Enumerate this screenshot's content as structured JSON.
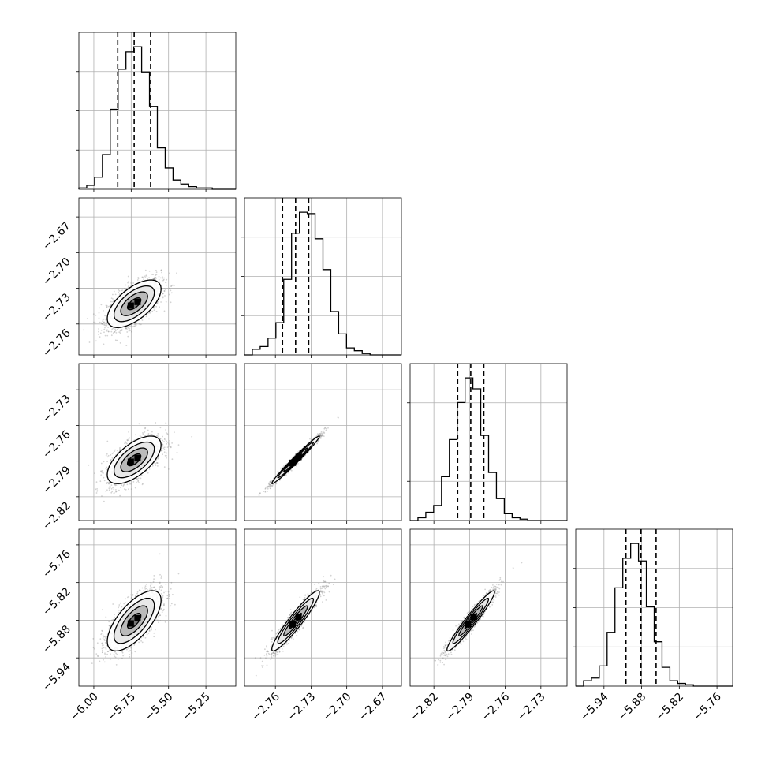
{
  "chart_data": {
    "type": "corner",
    "grid": true,
    "colors": {
      "contour": "#000000",
      "quantile_line": "#000000",
      "grid": "#b0b0b0",
      "points": "#808080"
    },
    "parameters": [
      {
        "index": 0,
        "range": [
          -6.1,
          -5.05
        ],
        "ticks": [
          -6.0,
          -5.75,
          -5.5,
          -5.25
        ],
        "tick_labels": [
          "−6.00",
          "−5.75",
          "−5.50",
          "−5.25"
        ],
        "mean": -5.73,
        "sd": 0.09,
        "quantiles": [
          -5.84,
          -5.73,
          -5.62
        ]
      },
      {
        "index": 1,
        "range": [
          -2.786,
          -2.654
        ],
        "ticks": [
          -2.76,
          -2.73,
          -2.7,
          -2.67
        ],
        "tick_labels": [
          "−2.76",
          "−2.73",
          "−2.70",
          "−2.67"
        ],
        "mean": -2.743,
        "sd": 0.01,
        "quantiles": [
          -2.754,
          -2.743,
          -2.732
        ]
      },
      {
        "index": 2,
        "range": [
          -2.84,
          -2.708
        ],
        "ticks": [
          -2.82,
          -2.79,
          -2.76,
          -2.73
        ],
        "tick_labels": [
          "−2.82",
          "−2.79",
          "−2.76",
          "−2.73"
        ],
        "mean": -2.789,
        "sd": 0.01,
        "quantiles": [
          -2.8,
          -2.789,
          -2.778
        ]
      },
      {
        "index": 3,
        "range": [
          -5.985,
          -5.735
        ],
        "ticks": [
          -5.94,
          -5.88,
          -5.82,
          -5.76
        ],
        "tick_labels": [
          "−5.94",
          "−5.88",
          "−5.82",
          "−5.76"
        ],
        "mean": -5.881,
        "sd": 0.024,
        "quantiles": [
          -5.905,
          -5.881,
          -5.857
        ]
      }
    ],
    "histograms": [
      {
        "param": 0,
        "counts": [
          1,
          3,
          9,
          26,
          60,
          90,
          103,
          107,
          88,
          62,
          31,
          16,
          7,
          4,
          2,
          1,
          1,
          0,
          0,
          0
        ]
      },
      {
        "param": 1,
        "counts": [
          0,
          4,
          6,
          12,
          23,
          54,
          87,
          102,
          101,
          83,
          61,
          31,
          15,
          5,
          3,
          1,
          0,
          0,
          0,
          0
        ]
      },
      {
        "param": 2,
        "counts": [
          0,
          2,
          6,
          11,
          32,
          59,
          86,
          104,
          96,
          62,
          35,
          16,
          5,
          2,
          1,
          0,
          0,
          0,
          0,
          0
        ]
      },
      {
        "param": 3,
        "counts": [
          0,
          4,
          6,
          15,
          40,
          73,
          95,
          106,
          93,
          59,
          33,
          14,
          4,
          2,
          1,
          0,
          0,
          0,
          0,
          0
        ]
      }
    ],
    "pairs": [
      {
        "x_param": 0,
        "y_param": 1,
        "correlation": 0.62
      },
      {
        "x_param": 0,
        "y_param": 2,
        "correlation": 0.62
      },
      {
        "x_param": 1,
        "y_param": 2,
        "correlation": 0.985
      },
      {
        "x_param": 0,
        "y_param": 3,
        "correlation": 0.68
      },
      {
        "x_param": 1,
        "y_param": 3,
        "correlation": 0.94
      },
      {
        "x_param": 2,
        "y_param": 3,
        "correlation": 0.96
      }
    ],
    "contour_levels_sigma": [
      0.5,
      1.0,
      1.5,
      2.0
    ]
  }
}
